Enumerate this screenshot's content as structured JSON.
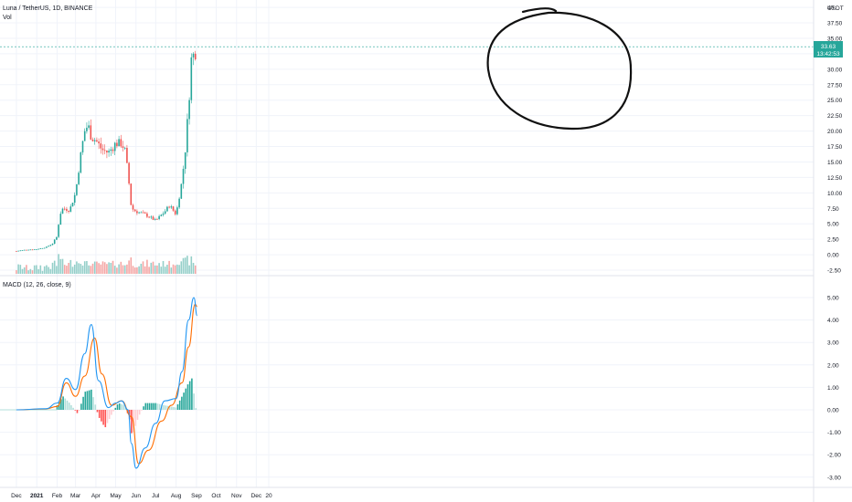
{
  "header": {
    "title": "Luna / TetherUS, 1D, BINANCE",
    "volume_label": "Vol",
    "macd_label": "MACD (12, 26, close, 9)",
    "currency": "USDT"
  },
  "price_badge": {
    "price": "33.63",
    "countdown": "13:42:53",
    "color": "#26a69a"
  },
  "colors": {
    "up": "#26a69a",
    "down": "#ef5350",
    "vol_up": "#94cfc9",
    "vol_down": "#f5a6a5",
    "macd_line": "#2196f3",
    "signal_line": "#ff6d00",
    "hist_pos_strong": "#26a69a",
    "hist_pos_weak": "#b2dfdb",
    "hist_neg_strong": "#ff5252",
    "hist_neg_weak": "#ffcdd2",
    "grid": "#f0f3fa",
    "axis_text": "#131722"
  },
  "chart_data": [
    {
      "type": "candlestick",
      "title": "Luna / TetherUS, 1D, BINANCE",
      "y_ticks": [
        "40",
        "37.50",
        "35.00",
        "32.50",
        "30.00",
        "27.50",
        "25.00",
        "22.50",
        "20.00",
        "17.50",
        "15.00",
        "12.50",
        "10.00",
        "7.50",
        "5.00",
        "2.50",
        "0.00",
        "-2.50"
      ],
      "ylim": [
        -2.5,
        40
      ],
      "x_ticks": [
        "Dec",
        "2021",
        "Feb",
        "Mar",
        "Apr",
        "May",
        "Jun",
        "Jul",
        "Aug",
        "Sep",
        "Oct",
        "Nov",
        "Dec",
        "20"
      ],
      "last_price": 33.63,
      "annotation": "hand-drawn circle around the Aug–Sep price highs",
      "series": [
        {
          "name": "price",
          "dates": [
            "2020-12-01",
            "2020-12-15",
            "2021-01-01",
            "2021-01-15",
            "2021-01-25",
            "2021-02-01",
            "2021-02-05",
            "2021-02-10",
            "2021-02-20",
            "2021-03-01",
            "2021-03-10",
            "2021-03-15",
            "2021-03-20",
            "2021-03-25",
            "2021-04-01",
            "2021-04-10",
            "2021-04-20",
            "2021-05-01",
            "2021-05-10",
            "2021-05-15",
            "2021-05-20",
            "2021-05-25",
            "2021-06-01",
            "2021-06-15",
            "2021-07-01",
            "2021-07-15",
            "2021-07-22",
            "2021-08-01",
            "2021-08-10",
            "2021-08-15",
            "2021-08-20",
            "2021-08-25",
            "2021-08-28",
            "2021-09-01"
          ],
          "close": [
            0.6,
            0.8,
            0.9,
            1.2,
            1.8,
            3.0,
            6.5,
            7.5,
            7.2,
            10.0,
            17.0,
            20.0,
            21.0,
            19.0,
            18.5,
            17.0,
            16.5,
            18.0,
            18.0,
            17.0,
            13.0,
            7.5,
            7.0,
            6.5,
            5.5,
            7.0,
            8.0,
            6.5,
            12.0,
            17.0,
            24.0,
            33.0,
            32.0,
            33.63
          ]
        }
      ]
    },
    {
      "type": "bar",
      "title": "Vol",
      "note": "daily volume bars along the bottom of the price pane, colored by candle direction"
    },
    {
      "type": "line",
      "title": "MACD (12, 26, close, 9)",
      "y_ticks": [
        "5.00",
        "4.00",
        "3.00",
        "2.00",
        "1.00",
        "0.00",
        "-1.00",
        "-2.00",
        "-3.00"
      ],
      "ylim": [
        -3.3,
        5.2
      ],
      "series": [
        {
          "name": "MACD",
          "dates": [
            "2020-12-01",
            "2021-01-15",
            "2021-02-01",
            "2021-02-15",
            "2021-03-01",
            "2021-03-15",
            "2021-03-25",
            "2021-04-05",
            "2021-04-20",
            "2021-05-01",
            "2021-05-10",
            "2021-05-20",
            "2021-05-25",
            "2021-06-01",
            "2021-06-15",
            "2021-07-01",
            "2021-07-15",
            "2021-08-01",
            "2021-08-10",
            "2021-08-20",
            "2021-08-28",
            "2021-09-02"
          ],
          "values": [
            0.0,
            0.05,
            0.3,
            1.4,
            0.9,
            2.5,
            3.8,
            1.3,
            0.1,
            0.3,
            0.4,
            0.0,
            -1.5,
            -2.6,
            -1.7,
            -0.6,
            0.4,
            0.5,
            1.7,
            4.0,
            5.0,
            4.2
          ]
        },
        {
          "name": "Signal",
          "dates": [
            "2020-12-01",
            "2021-01-15",
            "2021-02-01",
            "2021-02-15",
            "2021-03-01",
            "2021-03-15",
            "2021-03-30",
            "2021-04-10",
            "2021-04-25",
            "2021-05-10",
            "2021-05-25",
            "2021-06-05",
            "2021-06-20",
            "2021-07-10",
            "2021-07-25",
            "2021-08-10",
            "2021-08-20",
            "2021-08-30",
            "2021-09-02"
          ],
          "values": [
            0.0,
            0.04,
            0.15,
            1.2,
            0.6,
            1.5,
            3.2,
            1.6,
            0.2,
            0.4,
            -0.3,
            -2.4,
            -1.8,
            -0.5,
            0.2,
            1.2,
            2.8,
            4.7,
            4.6
          ]
        },
        {
          "name": "Histogram",
          "dates": [
            "2021-02-01",
            "2021-02-10",
            "2021-02-20",
            "2021-03-05",
            "2021-03-15",
            "2021-03-25",
            "2021-04-05",
            "2021-04-15",
            "2021-04-25",
            "2021-05-05",
            "2021-05-15",
            "2021-05-22",
            "2021-05-26",
            "2021-06-05",
            "2021-06-15",
            "2021-07-01",
            "2021-07-15",
            "2021-08-01",
            "2021-08-10",
            "2021-08-20",
            "2021-08-25",
            "2021-08-30",
            "2021-09-02"
          ],
          "values": [
            0.2,
            0.6,
            0.3,
            -0.2,
            0.8,
            0.9,
            -0.3,
            -0.8,
            -0.2,
            0.3,
            0.2,
            -0.4,
            -1.2,
            -0.3,
            0.3,
            0.3,
            0.2,
            0.1,
            0.6,
            1.2,
            1.4,
            0.3,
            -0.3
          ]
        }
      ]
    }
  ]
}
